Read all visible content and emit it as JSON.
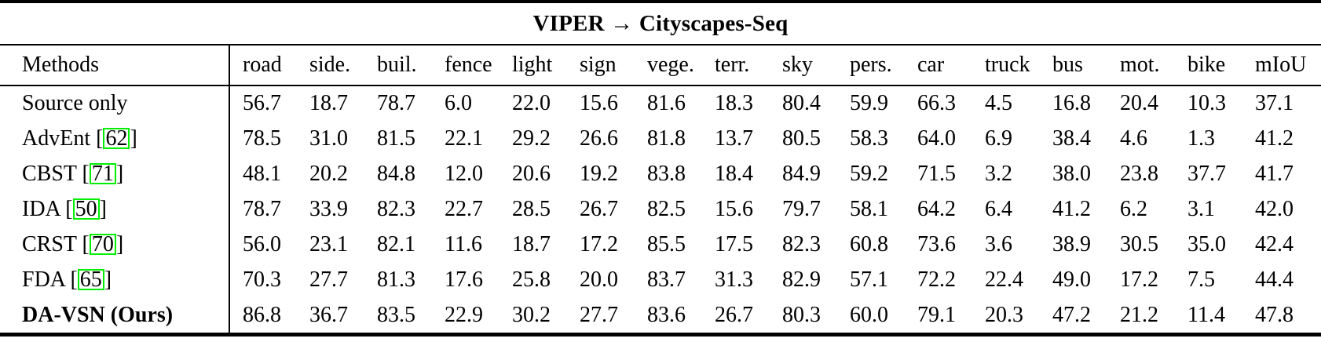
{
  "title": "VIPER → Cityscapes-Seq",
  "colors": {
    "citation_border": "#00ef00",
    "rule": "#000000"
  },
  "table": {
    "bracket_open": "[",
    "bracket_close": "]",
    "columns": [
      "Methods",
      "road",
      "side.",
      "buil.",
      "fence",
      "light",
      "sign",
      "vege.",
      "terr.",
      "sky",
      "pers.",
      "car",
      "truck",
      "bus",
      "mot.",
      "bike",
      "mIoU"
    ],
    "rows": [
      {
        "method": "Source only",
        "citation": null,
        "bold_method": false,
        "values": [
          "56.7",
          "18.7",
          "78.7",
          "6.0",
          "22.0",
          "15.6",
          "81.6",
          "18.3",
          "80.4",
          "59.9",
          "66.3",
          "4.5",
          "16.8",
          "20.4",
          "10.3",
          "37.1"
        ],
        "bold": [
          false,
          false,
          false,
          false,
          false,
          false,
          false,
          false,
          false,
          false,
          false,
          false,
          false,
          false,
          false,
          false
        ]
      },
      {
        "method": "AdvEnt",
        "citation": "62",
        "bold_method": false,
        "values": [
          "78.5",
          "31.0",
          "81.5",
          "22.1",
          "29.2",
          "26.6",
          "81.8",
          "13.7",
          "80.5",
          "58.3",
          "64.0",
          "6.9",
          "38.4",
          "4.6",
          "1.3",
          "41.2"
        ],
        "bold": [
          false,
          false,
          false,
          false,
          false,
          false,
          false,
          false,
          false,
          false,
          false,
          false,
          false,
          false,
          false,
          false
        ]
      },
      {
        "method": "CBST",
        "citation": "71",
        "bold_method": false,
        "values": [
          "48.1",
          "20.2",
          "84.8",
          "12.0",
          "20.6",
          "19.2",
          "83.8",
          "18.4",
          "84.9",
          "59.2",
          "71.5",
          "3.2",
          "38.0",
          "23.8",
          "37.7",
          "41.7"
        ],
        "bold": [
          false,
          false,
          true,
          false,
          false,
          false,
          false,
          false,
          true,
          false,
          false,
          false,
          false,
          false,
          false,
          false
        ]
      },
      {
        "method": "IDA",
        "citation": "50",
        "bold_method": false,
        "values": [
          "78.7",
          "33.9",
          "82.3",
          "22.7",
          "28.5",
          "26.7",
          "82.5",
          "15.6",
          "79.7",
          "58.1",
          "64.2",
          "6.4",
          "41.2",
          "6.2",
          "3.1",
          "42.0"
        ],
        "bold": [
          false,
          false,
          false,
          false,
          false,
          false,
          false,
          false,
          false,
          false,
          false,
          false,
          false,
          false,
          false,
          false
        ]
      },
      {
        "method": "CRST",
        "citation": "70",
        "bold_method": false,
        "values": [
          "56.0",
          "23.1",
          "82.1",
          "11.6",
          "18.7",
          "17.2",
          "85.5",
          "17.5",
          "82.3",
          "60.8",
          "73.6",
          "3.6",
          "38.9",
          "30.5",
          "35.0",
          "42.4"
        ],
        "bold": [
          false,
          false,
          false,
          false,
          false,
          false,
          true,
          false,
          false,
          true,
          false,
          false,
          false,
          true,
          true,
          false
        ]
      },
      {
        "method": "FDA",
        "citation": "65",
        "bold_method": false,
        "values": [
          "70.3",
          "27.7",
          "81.3",
          "17.6",
          "25.8",
          "20.0",
          "83.7",
          "31.3",
          "82.9",
          "57.1",
          "72.2",
          "22.4",
          "49.0",
          "17.2",
          "7.5",
          "44.4"
        ],
        "bold": [
          false,
          false,
          false,
          false,
          false,
          false,
          false,
          true,
          false,
          false,
          false,
          true,
          true,
          false,
          false,
          false
        ]
      },
      {
        "method": "DA-VSN (Ours)",
        "citation": null,
        "bold_method": true,
        "values": [
          "86.8",
          "36.7",
          "83.5",
          "22.9",
          "30.2",
          "27.7",
          "83.6",
          "26.7",
          "80.3",
          "60.0",
          "79.1",
          "20.3",
          "47.2",
          "21.2",
          "11.4",
          "47.8"
        ],
        "bold": [
          true,
          true,
          false,
          true,
          true,
          true,
          false,
          false,
          false,
          false,
          true,
          false,
          false,
          false,
          false,
          true
        ]
      }
    ]
  }
}
